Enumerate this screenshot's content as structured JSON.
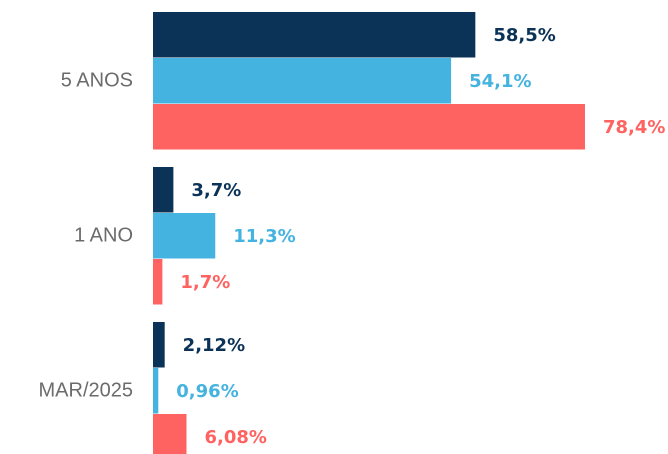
{
  "chart_data": {
    "type": "hbar",
    "categories": [
      "5 ANOS",
      "1 ANO",
      "MAR/2025"
    ],
    "series": [
      {
        "color": "#0b3358",
        "values": [
          58.5,
          3.7,
          2.12
        ],
        "value_labels": [
          "58,5%",
          "3,7%",
          "2,12%"
        ]
      },
      {
        "color": "#45b3e0",
        "values": [
          54.1,
          11.3,
          0.96
        ],
        "value_labels": [
          "54,1%",
          "11,3%",
          "0,96%"
        ]
      },
      {
        "color": "#ff6361",
        "values": [
          78.4,
          1.7,
          6.08
        ],
        "value_labels": [
          "78,4%",
          "1,7%",
          "6,08%"
        ]
      }
    ]
  }
}
